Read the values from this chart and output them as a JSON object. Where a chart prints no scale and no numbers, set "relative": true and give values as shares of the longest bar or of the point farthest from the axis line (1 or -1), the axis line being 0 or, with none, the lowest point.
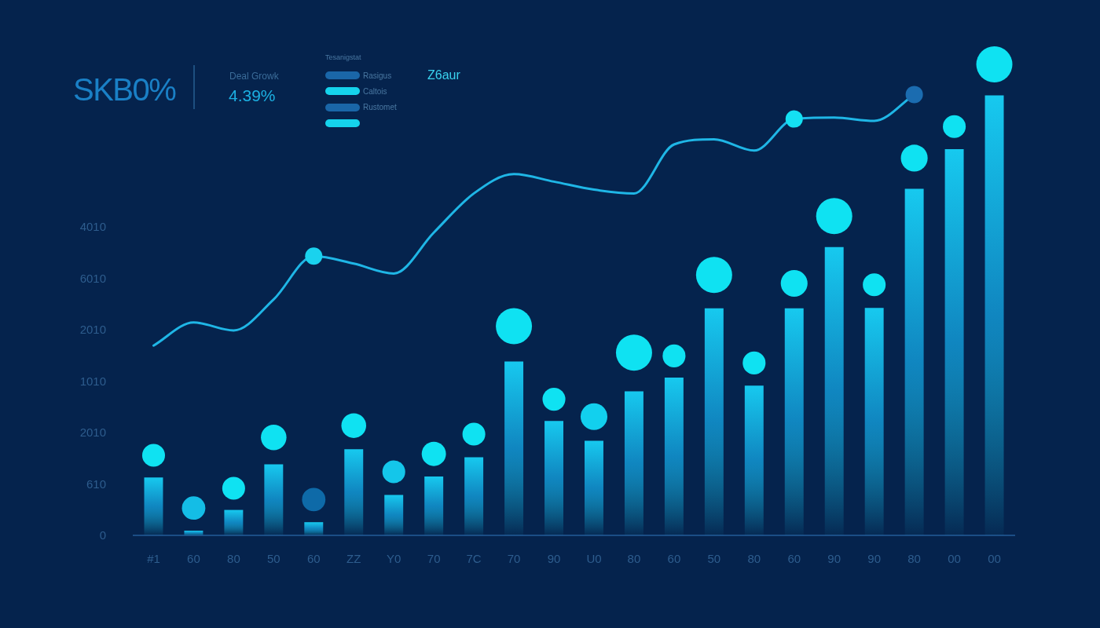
{
  "chart_data": {
    "type": "bar",
    "relative": true,
    "annotations": [
      "SKB0%",
      "Deal Growk",
      "4.39%",
      "Tesanigstat",
      "Rasigus",
      "Caltois",
      "Rustomet",
      "Z6aur",
      "4010",
      "6010",
      "2010",
      "1010",
      "2010",
      "610",
      "0"
    ],
    "categories": [
      "#1",
      "60",
      "80",
      "50",
      "60",
      "ZZ",
      "Y0",
      "70",
      "7C",
      "70",
      "90",
      "U0",
      "80",
      "60",
      "50",
      "80",
      "60",
      "90",
      "90",
      "80",
      "00",
      "00"
    ],
    "series": [
      {
        "color": "#17c9ef",
        "values": [
          0.123,
          0.01,
          0.054,
          0.151,
          0.028,
          0.183,
          0.086,
          0.125,
          0.166,
          0.369,
          0.243,
          0.201,
          0.306,
          0.335,
          0.482,
          0.318,
          0.482,
          0.612,
          0.483,
          0.736,
          0.82,
          0.934
        ]
      },
      {
        "type": "bubble",
        "values": [
          0.17,
          0.058,
          0.1,
          0.208,
          0.076,
          0.233,
          0.135,
          0.173,
          0.215,
          0.444,
          0.289,
          0.252,
          0.388,
          0.381,
          0.553,
          0.366,
          0.535,
          0.678,
          0.532,
          0.801,
          0.868,
          1
        ],
        "sizes": [
          0.4,
          0.42,
          0.4,
          0.5,
          0.42,
          0.47,
          0.4,
          0.45,
          0.4,
          1,
          0.4,
          0.55,
          1,
          0.4,
          1,
          0.4,
          0.55,
          1,
          0.4,
          0.55,
          0.4,
          1
        ],
        "colors": [
          "#0fe2f2",
          "#14bde6",
          "#0fe2f2",
          "#0fe2f2",
          "#0e6aa8",
          "#0fe2f2",
          "#14c6ea",
          "#0fe2f2",
          "#0fe2f2",
          "#0fe2f2",
          "#0fe2f2",
          "#12d0ee",
          "#0fe2f2",
          "#0fe2f2",
          "#0fe2f2",
          "#0fe2f2",
          "#0fe2f2",
          "#0fe2f2",
          "#0fe2f2",
          "#0fe2f2",
          "#0fe2f2",
          "#0fe2f2"
        ]
      },
      {
        "type": "line",
        "color": "#1fb6e6",
        "values": [
          0.403,
          0.452,
          0.435,
          0.501,
          0.593,
          0.577,
          0.556,
          0.643,
          0.726,
          0.767,
          0.751,
          0.734,
          0.726,
          0.83,
          0.841,
          0.817,
          0.884,
          0.887,
          0.88,
          0.936,
          null,
          null
        ]
      },
      {
        "type": "scatter",
        "marker": "circle",
        "values": [
          null,
          null,
          null,
          null,
          0.593,
          null,
          null,
          null,
          null,
          null,
          null,
          null,
          null,
          null,
          null,
          null,
          0.884,
          null,
          null,
          0.936,
          null,
          null
        ],
        "colors": [
          null,
          null,
          null,
          null,
          "#1ad2ee",
          null,
          null,
          null,
          null,
          null,
          null,
          null,
          null,
          null,
          null,
          null,
          "#14e0f2",
          null,
          null,
          "#1b6cb0",
          null,
          null
        ]
      }
    ]
  }
}
